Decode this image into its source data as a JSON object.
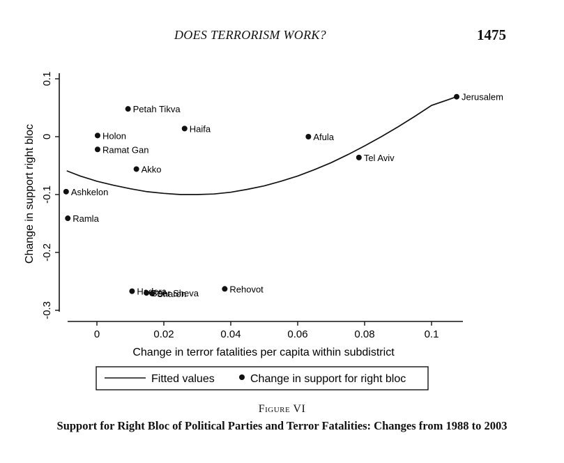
{
  "header": {
    "running_title": "DOES TERRORISM WORK?",
    "page_number": "1475"
  },
  "figure": {
    "label": "Figure VI",
    "caption": "Support for Right Bloc of Political Parties and Terror Fatalities: Changes from 1988 to 2003"
  },
  "chart_data": {
    "type": "scatter",
    "xlabel": "Change in terror fatalities per capita within subdistrict",
    "ylabel": "Change in support right bloc",
    "xlim": [
      -0.01,
      0.11
    ],
    "ylim": [
      -0.3,
      0.1
    ],
    "x_ticks": [
      0,
      0.02,
      0.04,
      0.06,
      0.08,
      0.1
    ],
    "x_tick_labels": [
      "0",
      "0.02",
      "0.04",
      "0.06",
      "0.08",
      "0.1"
    ],
    "y_ticks": [
      -0.3,
      -0.2,
      -0.1,
      0,
      0.1
    ],
    "y_tick_labels": [
      "-0.3",
      "-0.2",
      "-0.1",
      "0",
      "0.1"
    ],
    "grid": false,
    "legend": {
      "placement": "bottom",
      "entries": [
        "Fitted values",
        "Change in support for right bloc"
      ]
    },
    "series": [
      {
        "name": "Change in support for right bloc",
        "kind": "scatter",
        "points": [
          {
            "label": "Jerusalem",
            "x": 0.1075,
            "y": 0.069
          },
          {
            "label": "Petah Tikva",
            "x": 0.0093,
            "y": 0.048
          },
          {
            "label": "Haifa",
            "x": 0.0262,
            "y": 0.014
          },
          {
            "label": "Holon",
            "x": 0.0002,
            "y": 0.002
          },
          {
            "label": "Afula",
            "x": 0.0632,
            "y": 0.0
          },
          {
            "label": "Ramat Gan",
            "x": 0.0002,
            "y": -0.022
          },
          {
            "label": "Tel Aviv",
            "x": 0.0783,
            "y": -0.036
          },
          {
            "label": "Akko",
            "x": 0.0118,
            "y": -0.056
          },
          {
            "label": "Ashkelon",
            "x": -0.0092,
            "y": -0.095
          },
          {
            "label": "Ramla",
            "x": -0.0087,
            "y": -0.141
          },
          {
            "label": "Rehovot",
            "x": 0.0382,
            "y": -0.263
          },
          {
            "label": "Hadera",
            "x": 0.0105,
            "y": -0.267
          },
          {
            "label": "Beer Sheva",
            "x": 0.0148,
            "y": -0.27
          },
          {
            "label": "Sharon",
            "x": 0.0165,
            "y": -0.271
          }
        ]
      },
      {
        "name": "Fitted values",
        "kind": "line",
        "x": [
          -0.009,
          -0.005,
          0,
          0.005,
          0.01,
          0.015,
          0.02,
          0.025,
          0.03,
          0.035,
          0.04,
          0.045,
          0.05,
          0.055,
          0.06,
          0.065,
          0.07,
          0.075,
          0.08,
          0.085,
          0.09,
          0.095,
          0.1,
          0.105,
          0.1075
        ],
        "y": [
          -0.059,
          -0.068,
          -0.077,
          -0.084,
          -0.09,
          -0.095,
          -0.098,
          -0.1,
          -0.1,
          -0.099,
          -0.096,
          -0.091,
          -0.085,
          -0.077,
          -0.068,
          -0.057,
          -0.045,
          -0.031,
          -0.016,
          0.0,
          0.017,
          0.035,
          0.054,
          0.064,
          0.069
        ]
      }
    ]
  }
}
